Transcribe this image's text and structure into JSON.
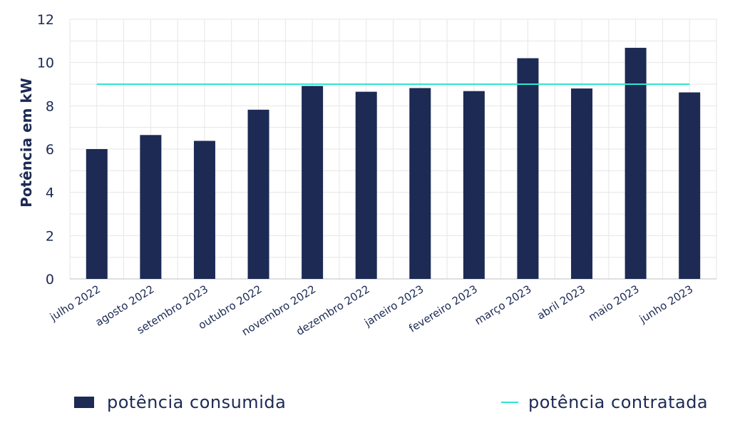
{
  "chart_data": {
    "type": "bar",
    "categories": [
      "julho 2022",
      "agosto 2022",
      "setembro 2023",
      "outubro 2022",
      "novembro 2022",
      "dezembro 2022",
      "janeiro 2023",
      "fevereiro 2023",
      "março 2023",
      "abril 2023",
      "maio 2023",
      "junho 2023"
    ],
    "series": [
      {
        "name": "potência consumida",
        "type": "bar",
        "color": "#1c2a54",
        "values": [
          6.0,
          6.65,
          6.38,
          7.82,
          8.92,
          8.65,
          8.82,
          8.68,
          10.2,
          8.8,
          10.68,
          8.62
        ]
      },
      {
        "name": "potência contratada",
        "type": "line",
        "color": "#2ee6d0",
        "values": [
          9,
          9,
          9,
          9,
          9,
          9,
          9,
          9,
          9,
          9,
          9,
          9
        ]
      }
    ],
    "ylabel": "Potência em kW",
    "xlabel": "",
    "ylim": [
      0,
      12
    ],
    "yticks": [
      0,
      2,
      4,
      6,
      8,
      10,
      12
    ],
    "grid": true,
    "legend": "bottom"
  }
}
